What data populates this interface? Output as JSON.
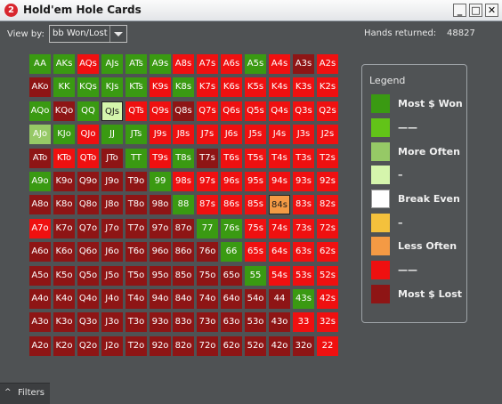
{
  "window": {
    "app_badge": "2",
    "title": "Hold'em Hole Cards",
    "btn_min": "_",
    "btn_max": "□",
    "btn_close": "✕"
  },
  "toolbar": {
    "view_by_label": "View by:",
    "view_by_value": "bb Won/Lost",
    "hands_returned_label": "Hands returned:",
    "hands_returned_value": "48827"
  },
  "colors": {
    "dkgreen": "#3a9a12",
    "green": "#62c318",
    "ltgreen": "#96c966",
    "pale": "#d5f5ac",
    "white": "#ffffff",
    "yellow": "#f4c13c",
    "orange": "#f49a44",
    "red": "#ef1010",
    "dkred": "#8e1515"
  },
  "grid": {
    "rows": [
      [
        "AA",
        "AKs",
        "AQs",
        "AJs",
        "ATs",
        "A9s",
        "A8s",
        "A7s",
        "A6s",
        "A5s",
        "A4s",
        "A3s",
        "A2s"
      ],
      [
        "AKo",
        "KK",
        "KQs",
        "KJs",
        "KTs",
        "K9s",
        "K8s",
        "K7s",
        "K6s",
        "K5s",
        "K4s",
        "K3s",
        "K2s"
      ],
      [
        "AQo",
        "KQo",
        "QQ",
        "QJs",
        "QTs",
        "Q9s",
        "Q8s",
        "Q7s",
        "Q6s",
        "Q5s",
        "Q4s",
        "Q3s",
        "Q2s"
      ],
      [
        "AJo",
        "KJo",
        "QJo",
        "JJ",
        "JTs",
        "J9s",
        "J8s",
        "J7s",
        "J6s",
        "J5s",
        "J4s",
        "J3s",
        "J2s"
      ],
      [
        "ATo",
        "KTo",
        "QTo",
        "JTo",
        "TT",
        "T9s",
        "T8s",
        "T7s",
        "T6s",
        "T5s",
        "T4s",
        "T3s",
        "T2s"
      ],
      [
        "A9o",
        "K9o",
        "Q9o",
        "J9o",
        "T9o",
        "99",
        "98s",
        "97s",
        "96s",
        "95s",
        "94s",
        "93s",
        "92s"
      ],
      [
        "A8o",
        "K8o",
        "Q8o",
        "J8o",
        "T8o",
        "98o",
        "88",
        "87s",
        "86s",
        "85s",
        "84s",
        "83s",
        "82s"
      ],
      [
        "A7o",
        "K7o",
        "Q7o",
        "J7o",
        "T7o",
        "97o",
        "87o",
        "77",
        "76s",
        "75s",
        "74s",
        "73s",
        "72s"
      ],
      [
        "A6o",
        "K6o",
        "Q6o",
        "J6o",
        "T6o",
        "96o",
        "86o",
        "76o",
        "66",
        "65s",
        "64s",
        "63s",
        "62s"
      ],
      [
        "A5o",
        "K5o",
        "Q5o",
        "J5o",
        "T5o",
        "95o",
        "85o",
        "75o",
        "65o",
        "55",
        "54s",
        "53s",
        "52s"
      ],
      [
        "A4o",
        "K4o",
        "Q4o",
        "J4o",
        "T4o",
        "94o",
        "84o",
        "74o",
        "64o",
        "54o",
        "44",
        "43s",
        "42s"
      ],
      [
        "A3o",
        "K3o",
        "Q3o",
        "J3o",
        "T3o",
        "93o",
        "83o",
        "73o",
        "63o",
        "53o",
        "43o",
        "33",
        "32s"
      ],
      [
        "A2o",
        "K2o",
        "Q2o",
        "J2o",
        "T2o",
        "92o",
        "82o",
        "72o",
        "62o",
        "52o",
        "42o",
        "32o",
        "22"
      ]
    ],
    "levels": [
      [
        "G",
        "G",
        "R",
        "G",
        "G",
        "G",
        "R",
        "R",
        "R",
        "G",
        "R",
        "D",
        "R"
      ],
      [
        "D",
        "G",
        "G",
        "G",
        "G",
        "R",
        "G",
        "R",
        "R",
        "R",
        "R",
        "R",
        "R"
      ],
      [
        "G",
        "D",
        "G",
        "P",
        "R",
        "R",
        "D",
        "R",
        "R",
        "R",
        "R",
        "R",
        "R"
      ],
      [
        "L",
        "G",
        "R",
        "G",
        "G",
        "R",
        "R",
        "R",
        "R",
        "R",
        "R",
        "R",
        "R"
      ],
      [
        "D",
        "R",
        "R",
        "D",
        "G",
        "R",
        "G",
        "D",
        "R",
        "R",
        "R",
        "R",
        "R"
      ],
      [
        "G",
        "D",
        "D",
        "D",
        "D",
        "G",
        "R",
        "R",
        "R",
        "R",
        "R",
        "R",
        "R"
      ],
      [
        "D",
        "D",
        "D",
        "D",
        "D",
        "D",
        "G",
        "R",
        "R",
        "R",
        "O",
        "R",
        "R"
      ],
      [
        "R",
        "D",
        "D",
        "D",
        "D",
        "D",
        "D",
        "G",
        "G",
        "R",
        "R",
        "R",
        "R"
      ],
      [
        "D",
        "D",
        "D",
        "D",
        "D",
        "D",
        "D",
        "D",
        "G",
        "R",
        "R",
        "R",
        "R"
      ],
      [
        "D",
        "D",
        "D",
        "D",
        "D",
        "D",
        "D",
        "D",
        "D",
        "G",
        "R",
        "R",
        "R"
      ],
      [
        "D",
        "D",
        "D",
        "D",
        "D",
        "D",
        "D",
        "D",
        "D",
        "D",
        "D",
        "G",
        "R"
      ],
      [
        "D",
        "D",
        "D",
        "D",
        "D",
        "D",
        "D",
        "D",
        "D",
        "D",
        "D",
        "R",
        "R"
      ],
      [
        "D",
        "D",
        "D",
        "D",
        "D",
        "D",
        "D",
        "D",
        "D",
        "D",
        "D",
        "D",
        "R"
      ]
    ]
  },
  "legend": {
    "title": "Legend",
    "items": [
      {
        "label": "Most $ Won",
        "color": "#3a9a12"
      },
      {
        "label": "——",
        "color": "#62c318"
      },
      {
        "label": "More Often",
        "color": "#96c966"
      },
      {
        "label": "–",
        "color": "#d5f5ac"
      },
      {
        "label": "Break Even",
        "color": "#ffffff"
      },
      {
        "label": "–",
        "color": "#f4c13c"
      },
      {
        "label": "Less Often",
        "color": "#f49a44"
      },
      {
        "label": "——",
        "color": "#ef1010"
      },
      {
        "label": "Most $ Lost",
        "color": "#8e1515"
      }
    ]
  },
  "statusbar": {
    "chevron": "^",
    "filters_label": "Filters"
  }
}
